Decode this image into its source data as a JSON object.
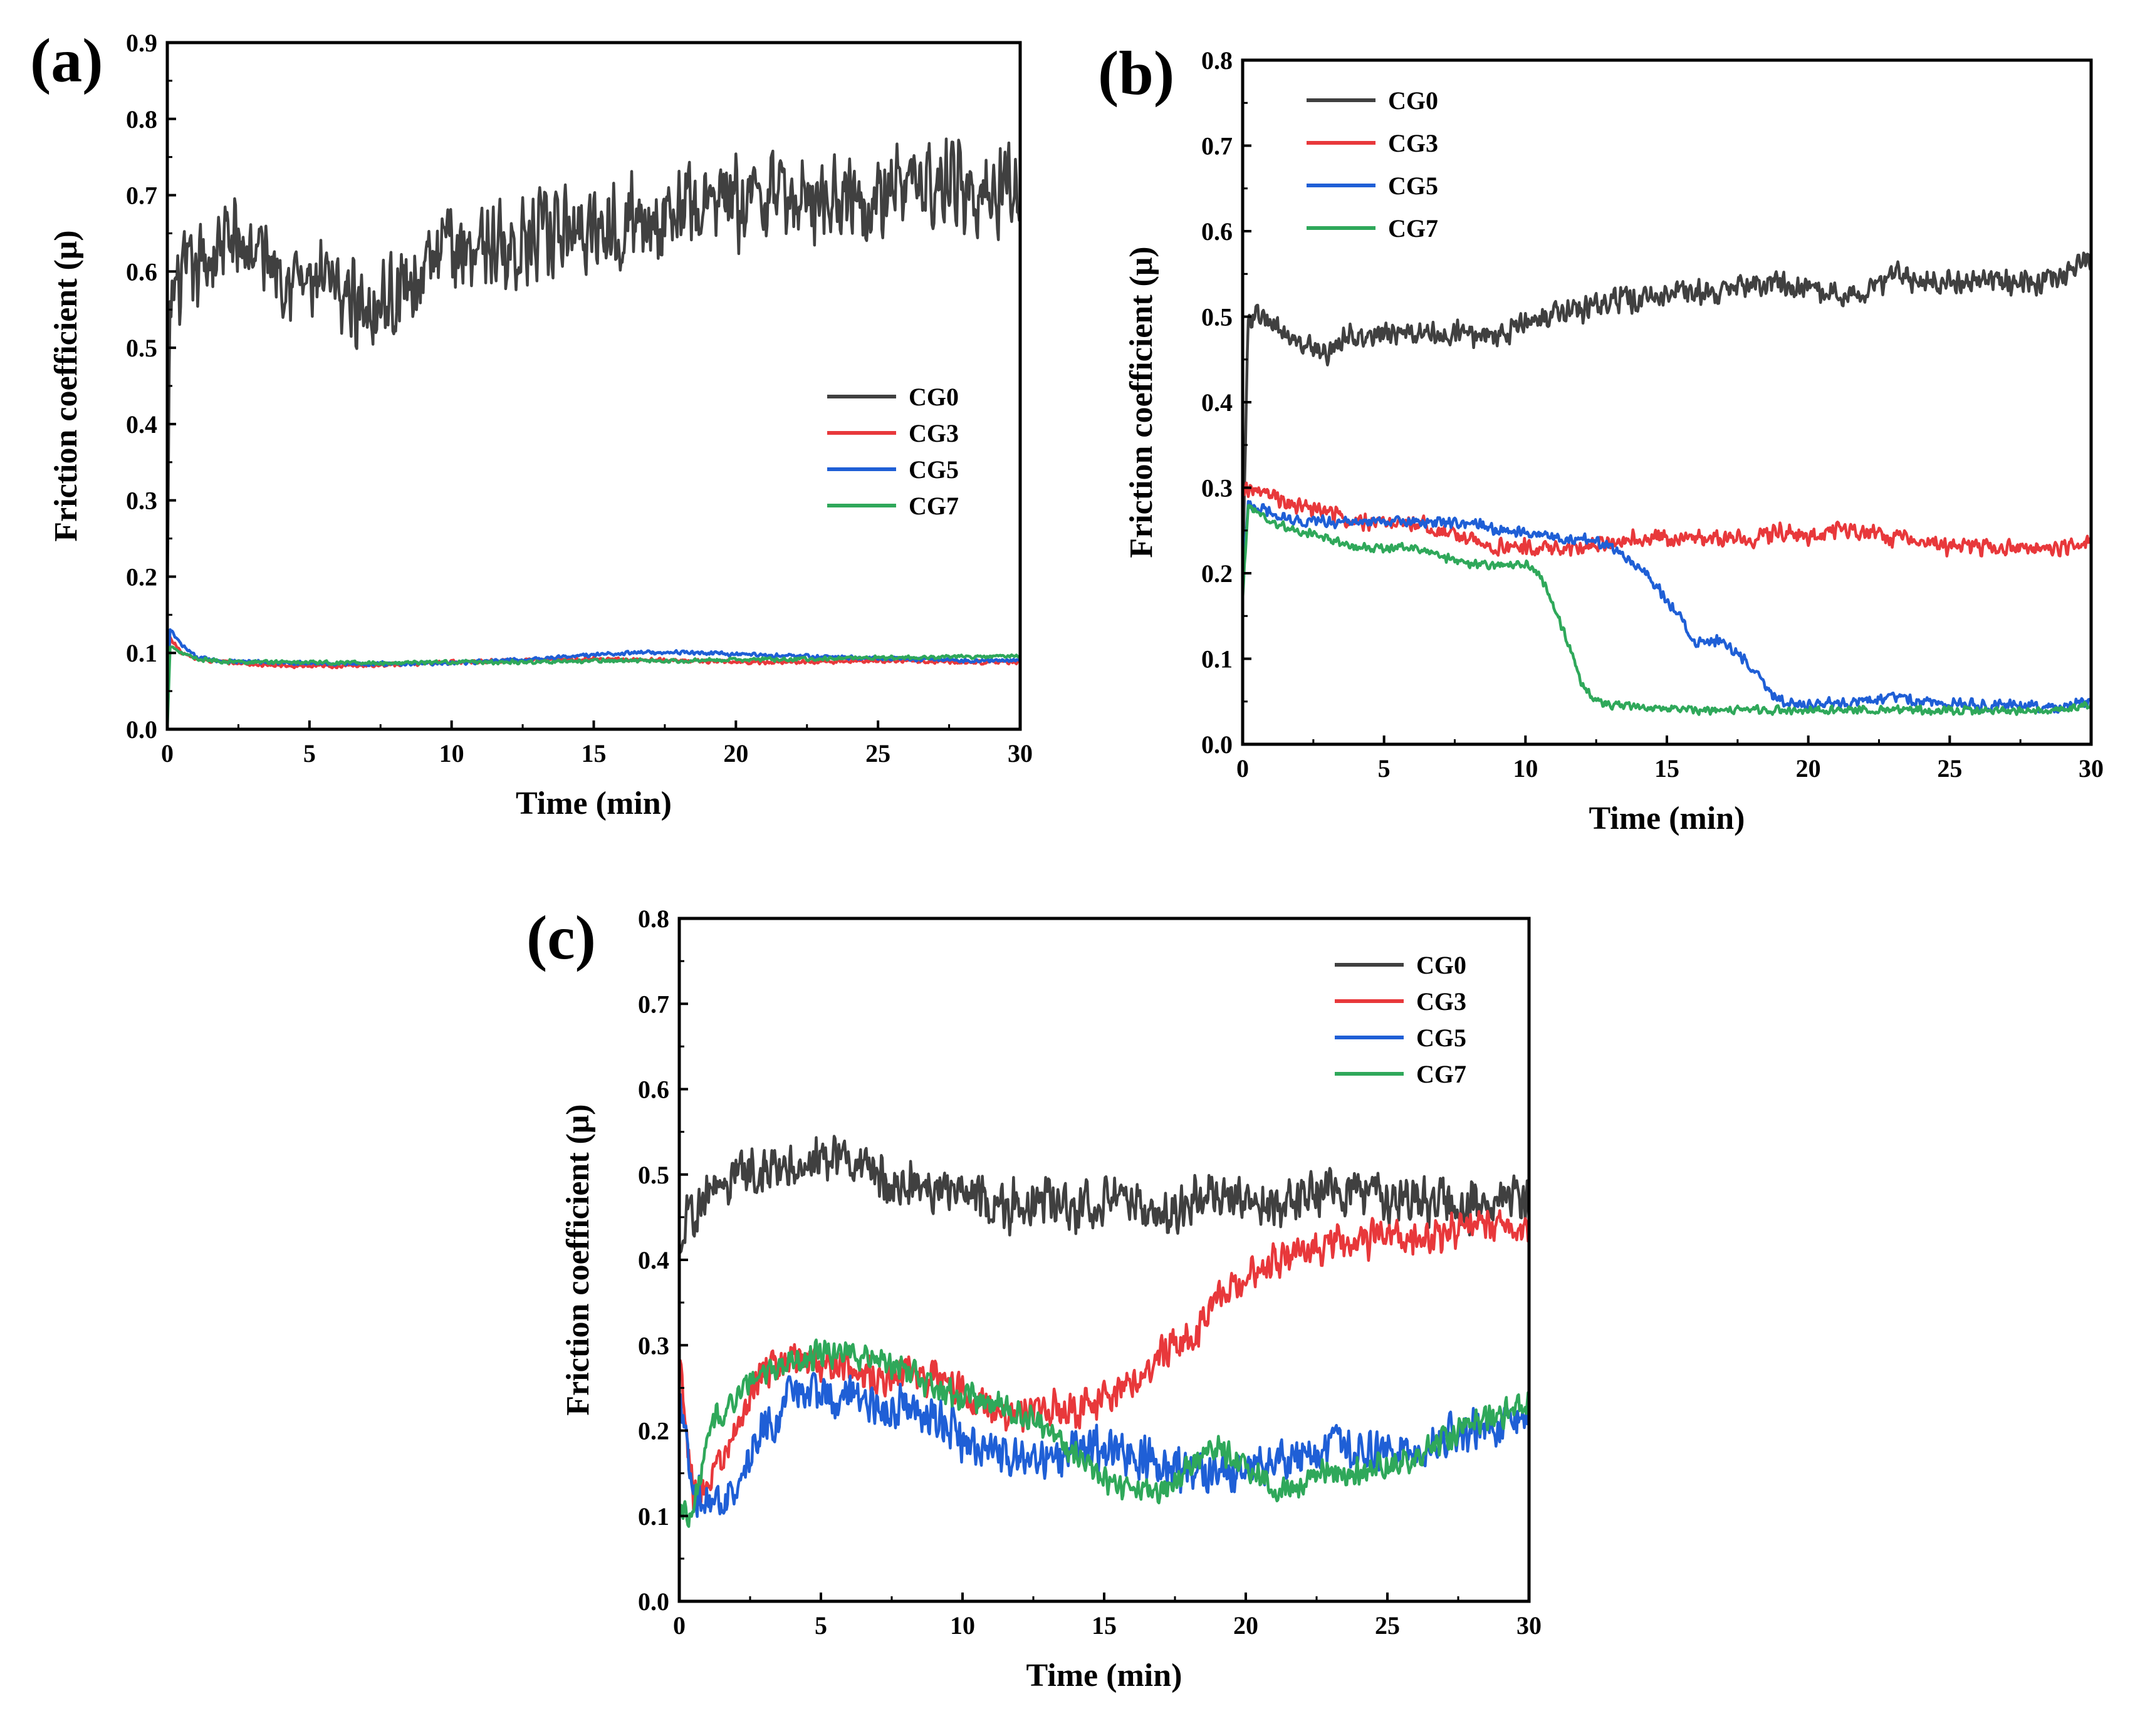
{
  "chart_data": [
    {
      "panel": "(a)",
      "type": "line",
      "title": "",
      "xlabel": "Time (min)",
      "ylabel": "Friction coefficient (μ)",
      "xlim": [
        0,
        30
      ],
      "ylim": [
        0,
        0.9
      ],
      "xticks": [
        "0",
        "5",
        "10",
        "15",
        "20",
        "25",
        "30"
      ],
      "yticks": [
        "0.0",
        "0.1",
        "0.2",
        "0.3",
        "0.4",
        "0.5",
        "0.6",
        "0.7",
        "0.8",
        "0.9"
      ],
      "legend_position": "center-right",
      "series": [
        {
          "name": "CG0",
          "color": "#404040",
          "noise": 0.07,
          "x": [
            0,
            0.1,
            0.3,
            1,
            2,
            3,
            4,
            5,
            6,
            7,
            8,
            9,
            10,
            11,
            12,
            13,
            14,
            15,
            16,
            17,
            18,
            19,
            20,
            21,
            22,
            23,
            24,
            25,
            26,
            27,
            28,
            29,
            30
          ],
          "y": [
            0.15,
            0.55,
            0.58,
            0.6,
            0.64,
            0.63,
            0.61,
            0.58,
            0.57,
            0.56,
            0.57,
            0.6,
            0.63,
            0.64,
            0.63,
            0.64,
            0.65,
            0.66,
            0.67,
            0.67,
            0.68,
            0.69,
            0.69,
            0.7,
            0.69,
            0.7,
            0.71,
            0.7,
            0.71,
            0.72,
            0.71,
            0.7,
            0.72
          ]
        },
        {
          "name": "CG3",
          "color": "#e8383b",
          "noise": 0.003,
          "x": [
            0,
            0.1,
            0.5,
            1,
            2,
            3,
            4,
            5,
            6,
            8,
            10,
            12,
            15,
            18,
            20,
            22,
            25,
            28,
            30
          ],
          "y": [
            0.05,
            0.12,
            0.1,
            0.092,
            0.088,
            0.085,
            0.083,
            0.082,
            0.083,
            0.085,
            0.088,
            0.09,
            0.092,
            0.09,
            0.088,
            0.088,
            0.09,
            0.088,
            0.088
          ]
        },
        {
          "name": "CG5",
          "color": "#1f5fd6",
          "noise": 0.003,
          "x": [
            0,
            0.1,
            0.5,
            1,
            2,
            4,
            6,
            8,
            10,
            12,
            14,
            16,
            18,
            20,
            22,
            24,
            26,
            28,
            30
          ],
          "y": [
            0.05,
            0.13,
            0.11,
            0.095,
            0.089,
            0.087,
            0.086,
            0.086,
            0.087,
            0.09,
            0.095,
            0.1,
            0.101,
            0.098,
            0.096,
            0.094,
            0.092,
            0.09,
            0.09
          ]
        },
        {
          "name": "CG7",
          "color": "#2fa85a",
          "noise": 0.003,
          "x": [
            0,
            0.1,
            0.5,
            1,
            2,
            4,
            6,
            8,
            10,
            12,
            14,
            16,
            18,
            20,
            22,
            24,
            26,
            28,
            30
          ],
          "y": [
            0.0,
            0.11,
            0.1,
            0.092,
            0.089,
            0.088,
            0.087,
            0.087,
            0.088,
            0.088,
            0.089,
            0.09,
            0.09,
            0.091,
            0.092,
            0.093,
            0.094,
            0.095,
            0.096
          ]
        }
      ]
    },
    {
      "panel": "(b)",
      "type": "line",
      "title": "",
      "xlabel": "Time (min)",
      "ylabel": "Friction coefficient (μ)",
      "xlim": [
        0,
        30
      ],
      "ylim": [
        0,
        0.8
      ],
      "xticks": [
        "0",
        "5",
        "10",
        "15",
        "20",
        "25",
        "30"
      ],
      "yticks": [
        "0.0",
        "0.1",
        "0.2",
        "0.3",
        "0.4",
        "0.5",
        "0.6",
        "0.7",
        "0.8"
      ],
      "legend_position": "top-left",
      "series": [
        {
          "name": "CG0",
          "color": "#404040",
          "noise": 0.018,
          "x": [
            0,
            0.2,
            0.5,
            1,
            2,
            3,
            4,
            5,
            6,
            7,
            8,
            9,
            10,
            11,
            12,
            13,
            14,
            15,
            16,
            17,
            18,
            19,
            20,
            21,
            22,
            23,
            24,
            25,
            26,
            27,
            28,
            29,
            30
          ],
          "y": [
            0.2,
            0.5,
            0.5,
            0.49,
            0.47,
            0.46,
            0.48,
            0.48,
            0.48,
            0.48,
            0.48,
            0.48,
            0.49,
            0.5,
            0.51,
            0.52,
            0.52,
            0.53,
            0.53,
            0.53,
            0.54,
            0.54,
            0.53,
            0.53,
            0.53,
            0.55,
            0.54,
            0.54,
            0.54,
            0.54,
            0.54,
            0.55,
            0.57
          ]
        },
        {
          "name": "CG3",
          "color": "#e8383b",
          "noise": 0.012,
          "x": [
            0,
            0.2,
            1,
            2,
            3,
            4,
            5,
            6,
            7,
            8,
            9,
            10,
            11,
            12,
            13,
            14,
            15,
            16,
            17,
            18,
            19,
            20,
            21,
            22,
            23,
            24,
            25,
            26,
            27,
            28,
            29,
            30
          ],
          "y": [
            0.3,
            0.3,
            0.29,
            0.28,
            0.27,
            0.26,
            0.26,
            0.26,
            0.25,
            0.24,
            0.23,
            0.23,
            0.23,
            0.23,
            0.24,
            0.24,
            0.24,
            0.24,
            0.24,
            0.24,
            0.25,
            0.24,
            0.25,
            0.25,
            0.24,
            0.24,
            0.23,
            0.23,
            0.23,
            0.23,
            0.23,
            0.24
          ]
        },
        {
          "name": "CG5",
          "color": "#1f5fd6",
          "noise": 0.008,
          "x": [
            0,
            0.2,
            1,
            2,
            3,
            4,
            5,
            6,
            7,
            8,
            9,
            10,
            11,
            12,
            13,
            14,
            15,
            16,
            17,
            18,
            19,
            20,
            21,
            22,
            23,
            24,
            25,
            26,
            27,
            28,
            29,
            30
          ],
          "y": [
            0.2,
            0.28,
            0.27,
            0.26,
            0.26,
            0.26,
            0.26,
            0.26,
            0.26,
            0.26,
            0.25,
            0.25,
            0.24,
            0.24,
            0.23,
            0.21,
            0.17,
            0.12,
            0.12,
            0.09,
            0.05,
            0.045,
            0.05,
            0.05,
            0.055,
            0.05,
            0.05,
            0.045,
            0.045,
            0.045,
            0.045,
            0.05
          ]
        },
        {
          "name": "CG7",
          "color": "#2fa85a",
          "noise": 0.006,
          "x": [
            0,
            0.2,
            1,
            2,
            3,
            4,
            5,
            6,
            7,
            8,
            9,
            10,
            10.5,
            11,
            11.5,
            12,
            12.5,
            13,
            14,
            15,
            16,
            17,
            18,
            19,
            20,
            21,
            22,
            23,
            24,
            25,
            26,
            27,
            28,
            29,
            30
          ],
          "y": [
            0.17,
            0.28,
            0.26,
            0.25,
            0.24,
            0.23,
            0.23,
            0.23,
            0.22,
            0.21,
            0.21,
            0.21,
            0.2,
            0.16,
            0.12,
            0.07,
            0.05,
            0.045,
            0.045,
            0.04,
            0.04,
            0.04,
            0.04,
            0.04,
            0.04,
            0.04,
            0.04,
            0.04,
            0.04,
            0.04,
            0.04,
            0.04,
            0.04,
            0.04,
            0.045
          ]
        }
      ]
    },
    {
      "panel": "(c)",
      "type": "line",
      "title": "",
      "xlabel": "Time (min)",
      "ylabel": "Friction coefficient (μ)",
      "xlim": [
        0,
        30
      ],
      "ylim": [
        0,
        0.8
      ],
      "xticks": [
        "0",
        "5",
        "10",
        "15",
        "20",
        "25",
        "30"
      ],
      "yticks": [
        "0.0",
        "0.1",
        "0.2",
        "0.3",
        "0.4",
        "0.5",
        "0.6",
        "0.7",
        "0.8"
      ],
      "legend_position": "top-right",
      "series": [
        {
          "name": "CG0",
          "color": "#404040",
          "noise": 0.035,
          "x": [
            0,
            0.5,
            1,
            2,
            3,
            4,
            5,
            6,
            7,
            8,
            9,
            10,
            11,
            12,
            13,
            14,
            15,
            16,
            17,
            18,
            19,
            20,
            21,
            22,
            23,
            24,
            25,
            26,
            27,
            28,
            29,
            30
          ],
          "y": [
            0.42,
            0.46,
            0.48,
            0.5,
            0.51,
            0.5,
            0.52,
            0.51,
            0.5,
            0.49,
            0.48,
            0.48,
            0.47,
            0.46,
            0.47,
            0.46,
            0.47,
            0.46,
            0.45,
            0.47,
            0.48,
            0.46,
            0.46,
            0.47,
            0.48,
            0.48,
            0.47,
            0.47,
            0.47,
            0.46,
            0.48,
            0.46
          ]
        },
        {
          "name": "CG3",
          "color": "#e8383b",
          "noise": 0.025,
          "x": [
            0,
            0.5,
            1,
            2,
            3,
            4,
            5,
            6,
            7,
            8,
            9,
            10,
            11,
            12,
            13,
            14,
            15,
            16,
            17,
            18,
            19,
            20,
            21,
            22,
            23,
            24,
            25,
            26,
            27,
            28,
            29,
            30
          ],
          "y": [
            0.28,
            0.12,
            0.14,
            0.2,
            0.27,
            0.29,
            0.27,
            0.28,
            0.26,
            0.27,
            0.26,
            0.25,
            0.22,
            0.22,
            0.23,
            0.22,
            0.24,
            0.26,
            0.29,
            0.31,
            0.35,
            0.38,
            0.4,
            0.41,
            0.42,
            0.42,
            0.43,
            0.43,
            0.43,
            0.44,
            0.44,
            0.43
          ]
        },
        {
          "name": "CG5",
          "color": "#1f5fd6",
          "noise": 0.03,
          "x": [
            0,
            0.5,
            1,
            1.5,
            2,
            3,
            4,
            5,
            6,
            7,
            8,
            9,
            10,
            11,
            12,
            13,
            14,
            15,
            16,
            17,
            18,
            19,
            20,
            21,
            22,
            23,
            24,
            25,
            26,
            27,
            28,
            29,
            30
          ],
          "y": [
            0.24,
            0.13,
            0.12,
            0.11,
            0.12,
            0.2,
            0.24,
            0.24,
            0.24,
            0.23,
            0.23,
            0.22,
            0.19,
            0.18,
            0.17,
            0.17,
            0.18,
            0.18,
            0.17,
            0.16,
            0.15,
            0.15,
            0.16,
            0.16,
            0.17,
            0.18,
            0.18,
            0.17,
            0.18,
            0.19,
            0.2,
            0.2,
            0.22
          ]
        },
        {
          "name": "CG7",
          "color": "#2fa85a",
          "noise": 0.02,
          "x": [
            0,
            0.5,
            1,
            2,
            3,
            4,
            5,
            6,
            7,
            8,
            9,
            10,
            11,
            12,
            13,
            14,
            15,
            16,
            17,
            18,
            19,
            20,
            21,
            22,
            23,
            24,
            25,
            26,
            27,
            28,
            29,
            30
          ],
          "y": [
            0.11,
            0.1,
            0.2,
            0.24,
            0.27,
            0.28,
            0.29,
            0.29,
            0.28,
            0.27,
            0.25,
            0.24,
            0.23,
            0.22,
            0.2,
            0.17,
            0.14,
            0.13,
            0.13,
            0.16,
            0.18,
            0.16,
            0.13,
            0.14,
            0.15,
            0.15,
            0.16,
            0.17,
            0.19,
            0.21,
            0.22,
            0.23
          ]
        }
      ]
    }
  ]
}
